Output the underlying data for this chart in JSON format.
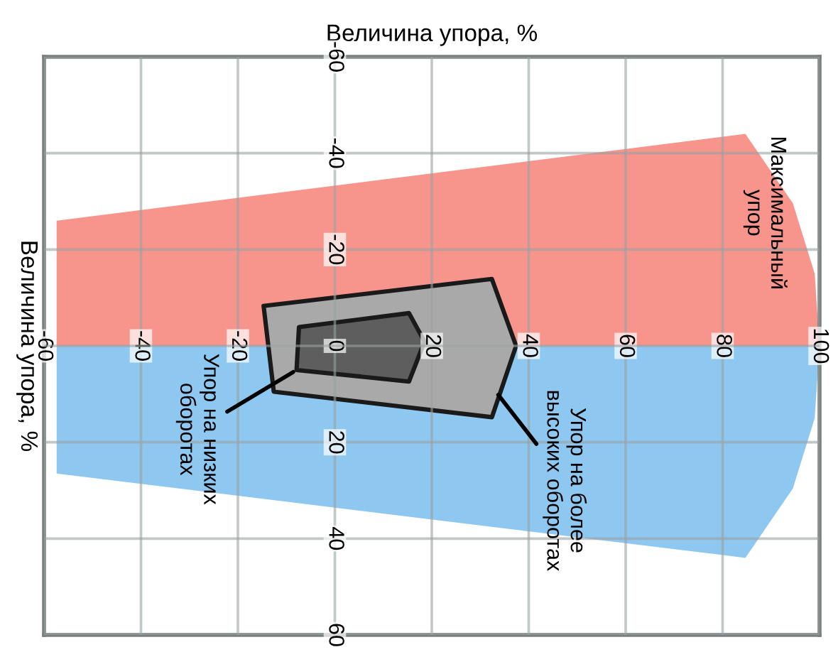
{
  "chart_data": {
    "type": "area",
    "xlabel": "Величина упора, %",
    "ylabel": "Величина упора, %",
    "xlim": [
      -60,
      100
    ],
    "ylim": [
      60,
      -60
    ],
    "xticks": [
      -60,
      -40,
      -20,
      0,
      20,
      40,
      60,
      80,
      100
    ],
    "yticks": [
      -60,
      -40,
      -20,
      {
        "value": 0,
        "label": null
      },
      20,
      40,
      60
    ],
    "grid": true,
    "series": [
      {
        "color": "#f7958c",
        "x": [
          -57.4,
          -57.4,
          84.7,
          94.5,
          99,
          100
        ],
        "values": [
          0,
          -26,
          -44,
          -29.6,
          -15,
          0
        ]
      },
      {
        "color": "#8ec8f0",
        "x": [
          -57.4,
          -57.4,
          84.7,
          94.5,
          99,
          100
        ],
        "values": [
          0,
          26.5,
          44,
          29.6,
          15,
          0
        ]
      },
      {
        "color": "#a9a9a9",
        "line_style": "solid",
        "x": [
          -14.7,
          32.4,
          37.4,
          32.4,
          -12.6
        ],
        "values": [
          -8.3,
          -13.9,
          0,
          14.8,
          9.5
        ]
      },
      {
        "color": "#5e5e5e",
        "line_style": "solid",
        "x": [
          -7.4,
          15.3,
          18.5,
          15.3,
          -7.9
        ],
        "values": [
          -3.9,
          -6.8,
          -0.9,
          7.4,
          5.0
        ]
      }
    ],
    "annotations": [
      "Максимальный\nупор",
      {
        "text": "Упор на низких\nоборотах",
        "x": -7.9,
        "y": 5.0
      },
      {
        "text": "Упор на более\nвысоких оборотах",
        "x": 33.2,
        "y": 9.5
      }
    ]
  }
}
